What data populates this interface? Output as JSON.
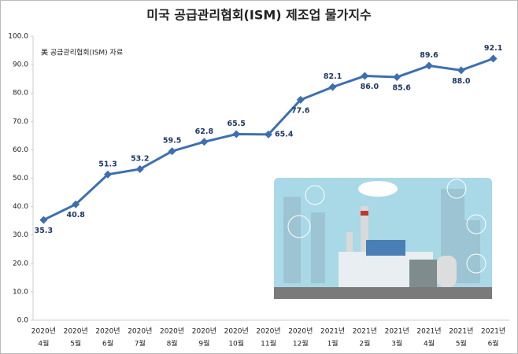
{
  "chart_data": {
    "type": "line",
    "title": "미국 공급관리협회(ISM) 제조업 물가지수",
    "annotation": "美 공급관리협회(ISM) 자료",
    "categories": [
      [
        "2020년",
        "4월"
      ],
      [
        "2020년",
        "5월"
      ],
      [
        "2020년",
        "6월"
      ],
      [
        "2020년",
        "7월"
      ],
      [
        "2020년",
        "8월"
      ],
      [
        "2020년",
        "9월"
      ],
      [
        "2020년",
        "10월"
      ],
      [
        "2020년",
        "11월"
      ],
      [
        "2020년",
        "12월"
      ],
      [
        "2021년",
        "1월"
      ],
      [
        "2021년",
        "2월"
      ],
      [
        "2021년",
        "3월"
      ],
      [
        "2021년",
        "4월"
      ],
      [
        "2021년",
        "5월"
      ],
      [
        "2021년",
        "6월"
      ]
    ],
    "values": [
      35.3,
      40.8,
      51.3,
      53.2,
      59.5,
      62.8,
      65.5,
      65.4,
      77.6,
      82.1,
      86.0,
      85.6,
      89.6,
      88.0,
      92.1
    ],
    "value_labels": [
      "35.3",
      "40.8",
      "51.3",
      "53.2",
      "59.5",
      "62.8",
      "65.5",
      "65.4",
      "77.6",
      "82.1",
      "86.0",
      "85.6",
      "89.6",
      "88.0",
      "92.1"
    ],
    "color": "#3d6fb0",
    "ylim": [
      0,
      100
    ],
    "yticks": [
      {
        "value": 0,
        "label": "0.0"
      },
      {
        "value": 10,
        "label": "10.0"
      },
      {
        "value": 20,
        "label": "20.0"
      },
      {
        "value": 30,
        "label": "30.0"
      },
      {
        "value": 40,
        "label": "40.0"
      },
      {
        "value": 50,
        "label": "50.0"
      },
      {
        "value": 60,
        "label": "60.0"
      },
      {
        "value": 70,
        "label": "70.0"
      },
      {
        "value": 80,
        "label": "80.0"
      },
      {
        "value": 90,
        "label": "90.0"
      },
      {
        "value": 100,
        "label": "100.0"
      }
    ],
    "grid": false
  }
}
